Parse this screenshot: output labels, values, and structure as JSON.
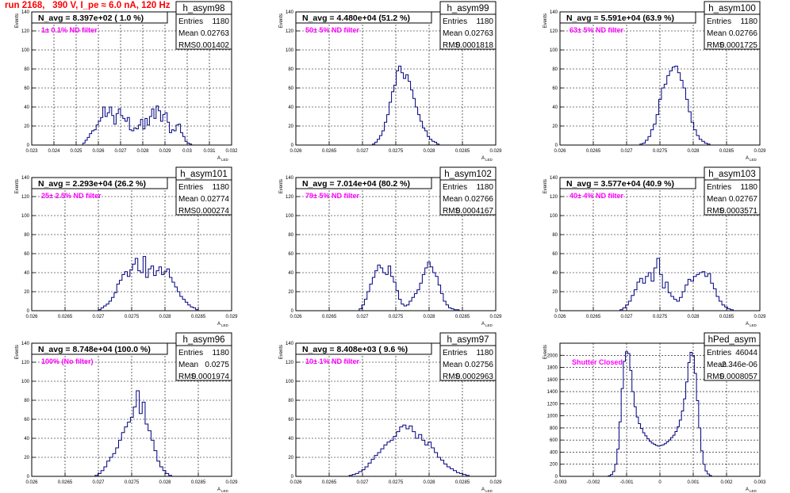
{
  "page": {
    "title": "run 2168,   390 V, I_pe ≈ 6.0 nA, 120 Hz"
  },
  "common": {
    "ylabel": "Events",
    "xlabel": "A",
    "xlabel_sub": "LED",
    "stat_labels": [
      "Entries",
      "Mean",
      "RMS"
    ]
  },
  "colors": {
    "hist": "#00007f",
    "annotation": "#ff00ff",
    "grid": "#000000",
    "title": "#ff0000"
  },
  "chart_data": [
    {
      "type": "histogram",
      "name": "h_asym98",
      "navg": "N_avg = 8.397e+02 ( 1.0 %)",
      "note": "1± 0.1% ND filter",
      "stats": [
        "1180",
        "0.02763",
        "0.001402"
      ],
      "xlim": [
        0.023,
        0.032
      ],
      "ylim": [
        0,
        140
      ],
      "xticks": [
        "0.023",
        "0.024",
        "0.025",
        "0.026",
        "0.027",
        "0.028",
        "0.029",
        "0.03",
        "0.031",
        "0.032"
      ],
      "yticks": [
        "0",
        "20",
        "40",
        "60",
        "80",
        "100",
        "120",
        "140"
      ],
      "x_start": 0.0253,
      "x_end": 0.0302,
      "values": [
        2,
        5,
        8,
        12,
        15,
        16,
        21,
        25,
        29,
        40,
        30,
        34,
        40,
        31,
        22,
        33,
        38,
        31,
        28,
        25,
        29,
        16,
        15,
        18,
        17,
        21,
        27,
        17,
        28,
        21,
        30,
        38,
        28,
        41,
        36,
        25,
        32,
        34,
        24,
        13,
        16,
        15,
        21,
        22,
        13,
        9,
        4,
        2,
        1
      ]
    },
    {
      "type": "histogram",
      "name": "h_asym99",
      "navg": "N_avg = 4.480e+04 (51.2 %)",
      "note": "50± 5% ND filter",
      "stats": [
        "1180",
        "0.02763",
        "0.0001818"
      ],
      "xlim": [
        0.026,
        0.029
      ],
      "ylim": [
        0,
        140
      ],
      "xticks": [
        "0.026",
        "0.0265",
        "0.027",
        "0.0275",
        "0.028",
        "0.0285",
        "0.029"
      ],
      "yticks": [
        "0",
        "20",
        "40",
        "60",
        "80",
        "100",
        "120",
        "140"
      ],
      "x_start": 0.02715,
      "x_end": 0.02815,
      "values": [
        1,
        3,
        6,
        10,
        15,
        24,
        32,
        45,
        56,
        63,
        78,
        83,
        76,
        70,
        74,
        67,
        58,
        49,
        40,
        32,
        25,
        18,
        15,
        9,
        6,
        4,
        3,
        1
      ]
    },
    {
      "type": "histogram",
      "name": "h_asym100",
      "navg": "N_avg = 5.591e+04 (63.9 %)",
      "note": "63± 5% ND filter",
      "stats": [
        "1180",
        "0.02766",
        "0.0001725"
      ],
      "xlim": [
        0.026,
        0.029
      ],
      "ylim": [
        0,
        140
      ],
      "xticks": [
        "0.026",
        "0.0265",
        "0.027",
        "0.0275",
        "0.028",
        "0.0285",
        "0.029"
      ],
      "yticks": [
        "0",
        "20",
        "40",
        "60",
        "80",
        "100",
        "120",
        "140"
      ],
      "x_start": 0.0272,
      "x_end": 0.02825,
      "values": [
        1,
        2,
        5,
        9,
        16,
        22,
        32,
        48,
        60,
        64,
        73,
        78,
        82,
        83,
        76,
        68,
        60,
        48,
        35,
        24,
        16,
        10,
        6,
        4,
        2,
        1
      ]
    },
    {
      "type": "histogram",
      "name": "h_asym101",
      "navg": "N_avg = 2.293e+04 (26.2 %)",
      "note": "25± 2.5% ND filter",
      "stats": [
        "1180",
        "0.02774",
        "0.000274"
      ],
      "xlim": [
        0.026,
        0.029
      ],
      "ylim": [
        0,
        140
      ],
      "xticks": [
        "0.026",
        "0.0265",
        "0.027",
        "0.0275",
        "0.028",
        "0.0285",
        "0.029"
      ],
      "yticks": [
        "0",
        "20",
        "40",
        "60",
        "80",
        "100",
        "120",
        "140"
      ],
      "x_start": 0.027,
      "x_end": 0.0285,
      "values": [
        1,
        3,
        5,
        7,
        10,
        14,
        19,
        28,
        32,
        38,
        41,
        36,
        43,
        49,
        55,
        42,
        40,
        57,
        35,
        44,
        47,
        37,
        42,
        46,
        38,
        41,
        44,
        35,
        30,
        25,
        20,
        15,
        12,
        9,
        6,
        4,
        3,
        1
      ]
    },
    {
      "type": "histogram",
      "name": "h_asym102",
      "navg": "N_avg = 7.014e+04 (80.2 %)",
      "note": "79± 5% ND filter",
      "stats": [
        "1180",
        "0.02766",
        "0.0004167"
      ],
      "xlim": [
        0.026,
        0.029
      ],
      "ylim": [
        0,
        140
      ],
      "xticks": [
        "0.026",
        "0.0265",
        "0.027",
        "0.0275",
        "0.028",
        "0.0285",
        "0.029"
      ],
      "yticks": [
        "0",
        "20",
        "40",
        "60",
        "80",
        "100",
        "120",
        "140"
      ],
      "x_start": 0.02695,
      "x_end": 0.02845,
      "values": [
        2,
        6,
        12,
        20,
        28,
        35,
        42,
        48,
        45,
        40,
        38,
        47,
        36,
        30,
        21,
        12,
        7,
        5,
        6,
        10,
        14,
        18,
        22,
        29,
        38,
        45,
        51,
        46,
        40,
        36,
        27,
        18,
        10,
        6,
        3,
        2,
        1,
        1
      ]
    },
    {
      "type": "histogram",
      "name": "h_asym103",
      "navg": "N_avg = 3.577e+04 (40.9 %)",
      "note": "40± 4% ND filter",
      "stats": [
        "1180",
        "0.02767",
        "0.0003571"
      ],
      "xlim": [
        0.026,
        0.029
      ],
      "ylim": [
        0,
        140
      ],
      "xticks": [
        "0.026",
        "0.0265",
        "0.027",
        "0.0275",
        "0.028",
        "0.0285",
        "0.029"
      ],
      "yticks": [
        "0",
        "20",
        "40",
        "60",
        "80",
        "100",
        "120",
        "140"
      ],
      "x_start": 0.0269,
      "x_end": 0.0286,
      "values": [
        1,
        3,
        6,
        10,
        16,
        22,
        30,
        34,
        29,
        36,
        40,
        31,
        45,
        55,
        38,
        24,
        30,
        19,
        15,
        12,
        10,
        14,
        20,
        27,
        33,
        31,
        36,
        38,
        40,
        41,
        36,
        39,
        29,
        23,
        15,
        10,
        6,
        4,
        2,
        1
      ]
    },
    {
      "type": "histogram",
      "name": "h_asym96",
      "navg": "N_avg = 8.748e+04 (100.0 %)",
      "note": "100% (No filter)",
      "stats": [
        "1180",
        "0.0275",
        "0.0001974"
      ],
      "xlim": [
        0.026,
        0.029
      ],
      "ylim": [
        0,
        140
      ],
      "xticks": [
        "0.026",
        "0.0265",
        "0.027",
        "0.0275",
        "0.028",
        "0.0285",
        "0.029"
      ],
      "yticks": [
        "0",
        "20",
        "40",
        "60",
        "80",
        "100",
        "120",
        "140"
      ],
      "x_start": 0.02695,
      "x_end": 0.0281,
      "values": [
        1,
        3,
        6,
        10,
        16,
        20,
        24,
        30,
        38,
        46,
        52,
        57,
        62,
        73,
        90,
        66,
        78,
        55,
        48,
        38,
        27,
        16,
        10,
        6,
        3,
        1
      ]
    },
    {
      "type": "histogram",
      "name": "h_asym97",
      "navg": "N_avg = 8.408e+03 ( 9.6 %)",
      "note": "10± 1% ND filter",
      "stats": [
        "1180",
        "0.02756",
        "0.0002963"
      ],
      "xlim": [
        0.026,
        0.029
      ],
      "ylim": [
        0,
        140
      ],
      "xticks": [
        "0.026",
        "0.0265",
        "0.027",
        "0.0275",
        "0.028",
        "0.0285",
        "0.029"
      ],
      "yticks": [
        "0",
        "20",
        "40",
        "60",
        "80",
        "100",
        "120",
        "140"
      ],
      "x_start": 0.0268,
      "x_end": 0.0286,
      "values": [
        1,
        2,
        3,
        5,
        7,
        10,
        14,
        18,
        22,
        25,
        29,
        33,
        36,
        38,
        42,
        47,
        52,
        54,
        50,
        53,
        47,
        40,
        44,
        38,
        33,
        36,
        30,
        25,
        20,
        17,
        13,
        10,
        8,
        6,
        4,
        3,
        2,
        1
      ]
    },
    {
      "type": "histogram",
      "name": "hPed_asym",
      "navg": "",
      "note": "Shutter Closed",
      "stats": [
        "46044",
        "-2.346e-06",
        "0.0008057"
      ],
      "xlim": [
        -0.003,
        0.003
      ],
      "ylim": [
        0,
        2200
      ],
      "xticks": [
        "-0.003",
        "-0.002",
        "-0.001",
        "0",
        "0.001",
        "0.002",
        "0.003"
      ],
      "yticks": [
        "0",
        "200",
        "400",
        "600",
        "800",
        "1000",
        "1200",
        "1400",
        "1600",
        "1800",
        "2000"
      ],
      "x_start": -0.00155,
      "x_end": 0.00155,
      "values": [
        10,
        30,
        80,
        200,
        450,
        900,
        1450,
        1900,
        2060,
        2030,
        1750,
        1400,
        1150,
        980,
        870,
        790,
        720,
        670,
        620,
        580,
        550,
        530,
        510,
        500,
        510,
        520,
        540,
        570,
        600,
        640,
        680,
        740,
        820,
        930,
        1080,
        1280,
        1560,
        1880,
        2050,
        1990,
        1700,
        1250,
        800,
        420,
        200,
        90,
        40,
        15
      ]
    }
  ]
}
